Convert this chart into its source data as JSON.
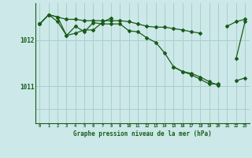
{
  "title": "Graphe pression niveau de la mer (hPa)",
  "background_color": "#cce8e8",
  "grid_color": "#aacece",
  "line_color": "#1a5c1a",
  "x_labels": [
    "0",
    "1",
    "2",
    "3",
    "4",
    "5",
    "6",
    "7",
    "8",
    "9",
    "10",
    "11",
    "12",
    "13",
    "14",
    "15",
    "16",
    "17",
    "18",
    "19",
    "20",
    "21",
    "22",
    "23"
  ],
  "yticks": [
    1011,
    1012
  ],
  "ylim": [
    1010.2,
    1012.8
  ],
  "xlim": [
    -0.5,
    23.5
  ],
  "series1": [
    1012.35,
    1012.55,
    1012.5,
    1012.45,
    1012.45,
    1012.42,
    1012.42,
    1012.42,
    1012.42,
    1012.42,
    1012.4,
    1012.35,
    1012.3,
    1012.28,
    1012.28,
    1012.25,
    1012.22,
    1012.18,
    1012.15,
    null,
    null,
    1012.3,
    1012.4,
    1012.45
  ],
  "series2": [
    1012.35,
    1012.55,
    1012.4,
    1012.1,
    1012.15,
    1012.22,
    1012.22,
    1012.38,
    1012.48,
    null,
    null,
    null,
    null,
    null,
    null,
    null,
    null,
    null,
    null,
    null,
    null,
    null,
    null,
    null
  ],
  "series3": [
    1012.35,
    1012.55,
    1012.5,
    1012.1,
    1012.3,
    1012.18,
    1012.38,
    1012.35,
    1012.35,
    1012.35,
    1012.2,
    1012.18,
    1012.05,
    1011.95,
    1011.72,
    1011.42,
    1011.32,
    1011.25,
    1011.15,
    1011.05,
    1011.05,
    null,
    1011.6,
    1012.4
  ],
  "series4": [
    null,
    null,
    null,
    null,
    null,
    null,
    null,
    null,
    null,
    null,
    null,
    null,
    null,
    null,
    null,
    1011.42,
    1011.32,
    1011.28,
    1011.2,
    1011.1,
    1011.02,
    null,
    1011.12,
    1011.18
  ]
}
